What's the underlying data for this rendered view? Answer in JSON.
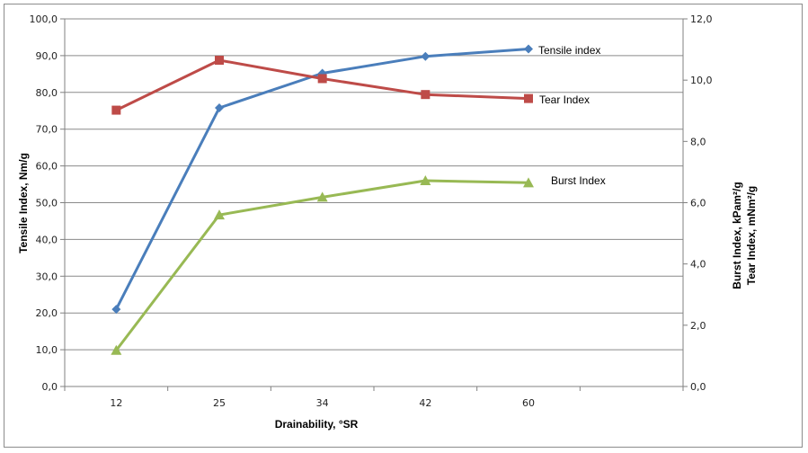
{
  "chart_data": {
    "type": "line",
    "categories": [
      "12",
      "25",
      "34",
      "42",
      "60"
    ],
    "xlabel": "Drainability, °SR",
    "ylabel": "Tensile Index, Nm/g",
    "y2label_line1": "Burst Index, kPam²/g",
    "y2label_line2": "Tear Index, mNm²/g",
    "ylim": [
      0,
      100
    ],
    "y2lim": [
      0,
      12
    ],
    "yticks": [
      "0,0",
      "10,0",
      "20,0",
      "30,0",
      "40,0",
      "50,0",
      "60,0",
      "70,0",
      "80,0",
      "90,0",
      "100,0"
    ],
    "y2ticks": [
      "0,0",
      "2,0",
      "4,0",
      "6,0",
      "8,0",
      "10,0",
      "12,0"
    ],
    "grid": true,
    "series": [
      {
        "name": "Tensile index",
        "axis": "left",
        "color": "#4a7ebb",
        "marker": "diamond",
        "values": [
          21.0,
          75.8,
          85.2,
          89.8,
          91.8
        ]
      },
      {
        "name": "Tear Index",
        "axis": "right",
        "color": "#be4b48",
        "marker": "square",
        "values": [
          9.02,
          10.65,
          10.05,
          9.53,
          9.4
        ]
      },
      {
        "name": "Burst Index",
        "axis": "right",
        "color": "#98b954",
        "marker": "triangle",
        "values": [
          1.18,
          5.6,
          6.18,
          6.72,
          6.65
        ]
      }
    ]
  }
}
